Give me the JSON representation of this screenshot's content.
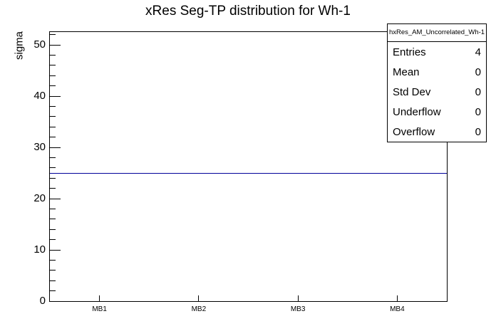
{
  "header": {
    "title": "xRes Seg-TP distribution for Wh-1"
  },
  "chart_data": {
    "type": "line",
    "title": "xRes Seg-TP distribution for Wh-1",
    "xlabel": "",
    "ylabel": "sigma",
    "categories": [
      "MB1",
      "MB2",
      "MB3",
      "MB4"
    ],
    "series": [
      {
        "name": "hxRes_AM_Uncorrelated_Wh-1",
        "values": [
          25,
          25,
          25,
          25
        ],
        "color": "#000099"
      }
    ],
    "ylim": [
      0,
      52.5
    ],
    "y_major_ticks": [
      0,
      10,
      20,
      30,
      40,
      50
    ],
    "y_minor_step": 2,
    "grid": false,
    "frame_color": "#000000",
    "background_color": "#ffffff",
    "legend_position": "none"
  },
  "stats_box": {
    "title": "hxRes_AM_Uncorrelated_Wh-1",
    "rows": [
      {
        "label": "Entries",
        "value": "4"
      },
      {
        "label": "Mean",
        "value": "0"
      },
      {
        "label": "Std Dev",
        "value": "0"
      },
      {
        "label": "Underflow",
        "value": "0"
      },
      {
        "label": "Overflow",
        "value": "0"
      }
    ]
  }
}
